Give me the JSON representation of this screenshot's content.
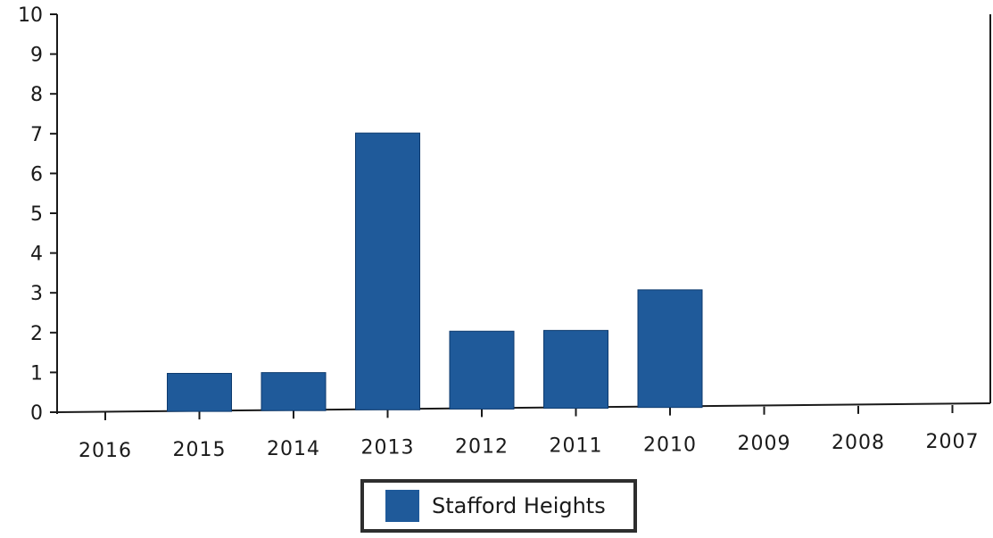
{
  "chart_data": {
    "type": "bar",
    "title": "",
    "xlabel": "",
    "ylabel": "",
    "categories": [
      "2016",
      "2015",
      "2014",
      "2013",
      "2012",
      "2011",
      "2010",
      "2009",
      "2008",
      "2007"
    ],
    "series": [
      {
        "name": "Stafford Heights",
        "values": [
          0,
          1,
          1,
          7,
          2,
          2,
          3,
          0,
          0,
          0
        ],
        "color": "#1f5a9a"
      }
    ],
    "ylim": [
      0,
      10
    ],
    "yticks": [
      "0",
      "1",
      "2",
      "3",
      "4",
      "5",
      "6",
      "7",
      "8",
      "9",
      "10"
    ],
    "grid": false,
    "legend_position": "bottom-center"
  },
  "legend": {
    "label": "Stafford Heights",
    "color": "#1f5a9a"
  }
}
